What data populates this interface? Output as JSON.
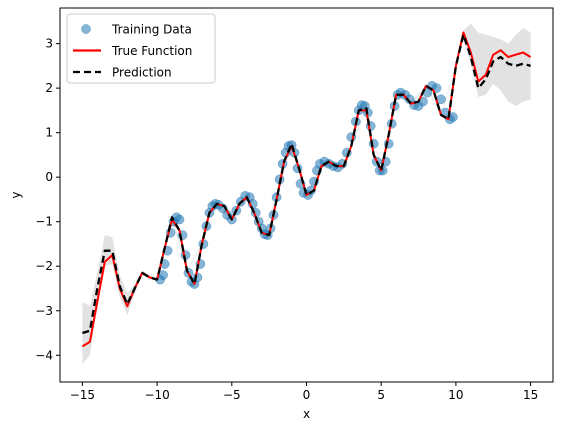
{
  "chart_data": {
    "type": "line",
    "title": "",
    "xlabel": "x",
    "ylabel": "y",
    "xlim": [
      -16.5,
      16.5
    ],
    "ylim": [
      -4.6,
      3.8
    ],
    "xticks": [
      -15,
      -10,
      -5,
      0,
      5,
      10,
      15
    ],
    "xtick_labels": [
      "−15",
      "−10",
      "−5",
      "0",
      "5",
      "10",
      "15"
    ],
    "yticks": [
      -4,
      -3,
      -2,
      -1,
      0,
      1,
      2,
      3
    ],
    "ytick_labels": [
      "−4",
      "−3",
      "−2",
      "−1",
      "0",
      "1",
      "2",
      "3"
    ],
    "grid": false,
    "legend": {
      "position": "upper-left",
      "entries": [
        {
          "label": "Training Data",
          "kind": "marker",
          "color": "#1f77b4"
        },
        {
          "label": "True Function",
          "kind": "solid-line",
          "color": "#ff0000"
        },
        {
          "label": "Prediction",
          "kind": "dashed-line",
          "color": "#000000"
        }
      ]
    },
    "series": [
      {
        "name": "True Function",
        "style": "solid",
        "color": "#ff0000",
        "x": [
          -15,
          -14.5,
          -14,
          -13.5,
          -13,
          -12.5,
          -12,
          -11.5,
          -11,
          -10.5,
          -10,
          -9.5,
          -9,
          -8.5,
          -8,
          -7.5,
          -7,
          -6.5,
          -6,
          -5.5,
          -5,
          -4.5,
          -4,
          -3.5,
          -3,
          -2.5,
          -2,
          -1.5,
          -1,
          -0.5,
          0,
          0.5,
          1,
          1.5,
          2,
          2.5,
          3,
          3.5,
          4,
          4.5,
          5,
          5.5,
          6,
          6.5,
          7,
          7.5,
          8,
          8.5,
          9,
          9.5,
          10,
          10.5,
          11,
          11.5,
          12,
          12.5,
          13,
          13.5,
          14,
          14.5,
          15
        ],
        "y": [
          -3.8,
          -3.7,
          -2.8,
          -1.9,
          -1.75,
          -2.5,
          -2.9,
          -2.5,
          -2.15,
          -2.25,
          -2.3,
          -1.6,
          -0.95,
          -1.2,
          -2.1,
          -2.4,
          -1.5,
          -0.8,
          -0.6,
          -0.65,
          -0.95,
          -0.6,
          -0.45,
          -0.8,
          -1.25,
          -1.3,
          -0.5,
          0.35,
          0.7,
          0.2,
          -0.4,
          -0.3,
          0.25,
          0.35,
          0.25,
          0.25,
          0.7,
          1.5,
          1.5,
          0.5,
          0.15,
          0.95,
          1.85,
          1.85,
          1.65,
          1.7,
          2.05,
          1.95,
          1.4,
          1.3,
          2.5,
          3.25,
          2.8,
          2.15,
          2.3,
          2.75,
          2.85,
          2.7,
          2.75,
          2.8,
          2.7
        ]
      },
      {
        "name": "Prediction",
        "style": "dashed",
        "color": "#000000",
        "x": [
          -15,
          -14.5,
          -14,
          -13.5,
          -13,
          -12.5,
          -12,
          -11.5,
          -11,
          -10.5,
          -10,
          -9.5,
          -9,
          -8.5,
          -8,
          -7.5,
          -7,
          -6.5,
          -6,
          -5.5,
          -5,
          -4.5,
          -4,
          -3.5,
          -3,
          -2.5,
          -2,
          -1.5,
          -1,
          -0.5,
          0,
          0.5,
          1,
          1.5,
          2,
          2.5,
          3,
          3.5,
          4,
          4.5,
          5,
          5.5,
          6,
          6.5,
          7,
          7.5,
          8,
          8.5,
          9,
          9.5,
          10,
          10.5,
          11,
          11.5,
          12,
          12.5,
          13,
          13.5,
          14,
          14.5,
          15
        ],
        "y": [
          -3.5,
          -3.45,
          -2.5,
          -1.65,
          -1.65,
          -2.45,
          -2.85,
          -2.5,
          -2.15,
          -2.25,
          -2.3,
          -1.6,
          -0.9,
          -1.2,
          -2.1,
          -2.4,
          -1.5,
          -0.8,
          -0.6,
          -0.65,
          -0.95,
          -0.6,
          -0.45,
          -0.8,
          -1.25,
          -1.3,
          -0.5,
          0.35,
          0.75,
          0.2,
          -0.4,
          -0.3,
          0.25,
          0.35,
          0.25,
          0.25,
          0.7,
          1.5,
          1.55,
          0.5,
          0.15,
          0.95,
          1.85,
          1.85,
          1.65,
          1.7,
          2.05,
          1.95,
          1.4,
          1.3,
          2.5,
          3.2,
          2.7,
          2.0,
          2.2,
          2.6,
          2.7,
          2.55,
          2.5,
          2.55,
          2.5
        ]
      }
    ],
    "uncertainty_band": {
      "color": "#dddddd",
      "x": [
        -15,
        -14.5,
        -14,
        -13.5,
        -13,
        -12.5,
        -12,
        -11.5,
        -11,
        -10,
        -9,
        -8,
        -7,
        -6,
        -5,
        -4,
        -3,
        -2,
        -1,
        0,
        1,
        2,
        3,
        4,
        5,
        6,
        7,
        8,
        9,
        10,
        10.5,
        11,
        11.5,
        12,
        12.5,
        13,
        13.5,
        14,
        14.5,
        15
      ],
      "lower": [
        -4.2,
        -4.0,
        -2.85,
        -2.0,
        -1.95,
        -2.7,
        -3.1,
        -2.6,
        -2.2,
        -2.32,
        -0.95,
        -2.12,
        -1.52,
        -0.62,
        -0.97,
        -0.47,
        -1.27,
        -0.52,
        0.73,
        -0.42,
        0.23,
        0.23,
        0.68,
        1.53,
        0.13,
        1.83,
        1.63,
        2.03,
        1.38,
        2.48,
        3.1,
        2.55,
        1.8,
        1.85,
        2.1,
        1.95,
        1.7,
        1.6,
        1.7,
        1.75
      ],
      "upper": [
        -2.8,
        -2.9,
        -2.15,
        -1.3,
        -1.35,
        -2.2,
        -2.6,
        -2.4,
        -2.1,
        -2.28,
        -0.85,
        -2.08,
        -1.48,
        -0.58,
        -0.93,
        -0.43,
        -1.23,
        -0.48,
        0.77,
        -0.38,
        0.27,
        0.27,
        0.72,
        1.57,
        0.17,
        1.87,
        1.67,
        2.07,
        1.42,
        2.52,
        3.3,
        3.45,
        3.25,
        3.2,
        3.15,
        3.1,
        3.0,
        3.2,
        3.35,
        3.25
      ]
    },
    "scatter": {
      "name": "Training Data",
      "color": "#1f77b4",
      "x": [
        -9.8,
        -9.6,
        -9.5,
        -9.3,
        -9.1,
        -8.9,
        -8.7,
        -8.5,
        -8.3,
        -8.1,
        -7.9,
        -7.7,
        -7.5,
        -7.3,
        -7.1,
        -6.9,
        -6.7,
        -6.5,
        -6.3,
        -6.1,
        -5.9,
        -5.6,
        -5.3,
        -5.0,
        -4.7,
        -4.4,
        -4.1,
        -3.8,
        -3.6,
        -3.4,
        -3.2,
        -3.0,
        -2.8,
        -2.6,
        -2.4,
        -2.2,
        -2.0,
        -1.8,
        -1.6,
        -1.4,
        -1.2,
        -1.0,
        -0.8,
        -0.6,
        -0.4,
        -0.2,
        0.1,
        0.3,
        0.5,
        0.7,
        0.9,
        1.2,
        1.5,
        1.8,
        2.1,
        2.4,
        2.7,
        3.0,
        3.3,
        3.5,
        3.7,
        3.9,
        4.1,
        4.3,
        4.5,
        4.7,
        4.9,
        5.1,
        5.3,
        5.5,
        5.7,
        5.9,
        6.1,
        6.3,
        6.6,
        6.9,
        7.2,
        7.5,
        7.8,
        8.1,
        8.4,
        8.7,
        9.0,
        9.3,
        9.6,
        9.8
      ],
      "y": [
        -2.3,
        -2.2,
        -1.95,
        -1.65,
        -1.25,
        -1.0,
        -0.9,
        -0.95,
        -1.3,
        -1.75,
        -2.15,
        -2.35,
        -2.4,
        -2.25,
        -1.95,
        -1.5,
        -1.1,
        -0.8,
        -0.65,
        -0.6,
        -0.62,
        -0.7,
        -0.85,
        -0.95,
        -0.75,
        -0.55,
        -0.42,
        -0.45,
        -0.6,
        -0.8,
        -1.0,
        -1.15,
        -1.28,
        -1.3,
        -1.15,
        -0.85,
        -0.45,
        -0.05,
        0.3,
        0.55,
        0.7,
        0.72,
        0.55,
        0.2,
        -0.15,
        -0.35,
        -0.4,
        -0.3,
        -0.1,
        0.15,
        0.3,
        0.35,
        0.3,
        0.25,
        0.22,
        0.3,
        0.55,
        0.9,
        1.25,
        1.5,
        1.62,
        1.6,
        1.45,
        1.15,
        0.75,
        0.35,
        0.15,
        0.15,
        0.35,
        0.75,
        1.2,
        1.6,
        1.85,
        1.9,
        1.85,
        1.75,
        1.62,
        1.6,
        1.7,
        1.9,
        2.05,
        2.0,
        1.75,
        1.45,
        1.3,
        1.35
      ]
    }
  }
}
